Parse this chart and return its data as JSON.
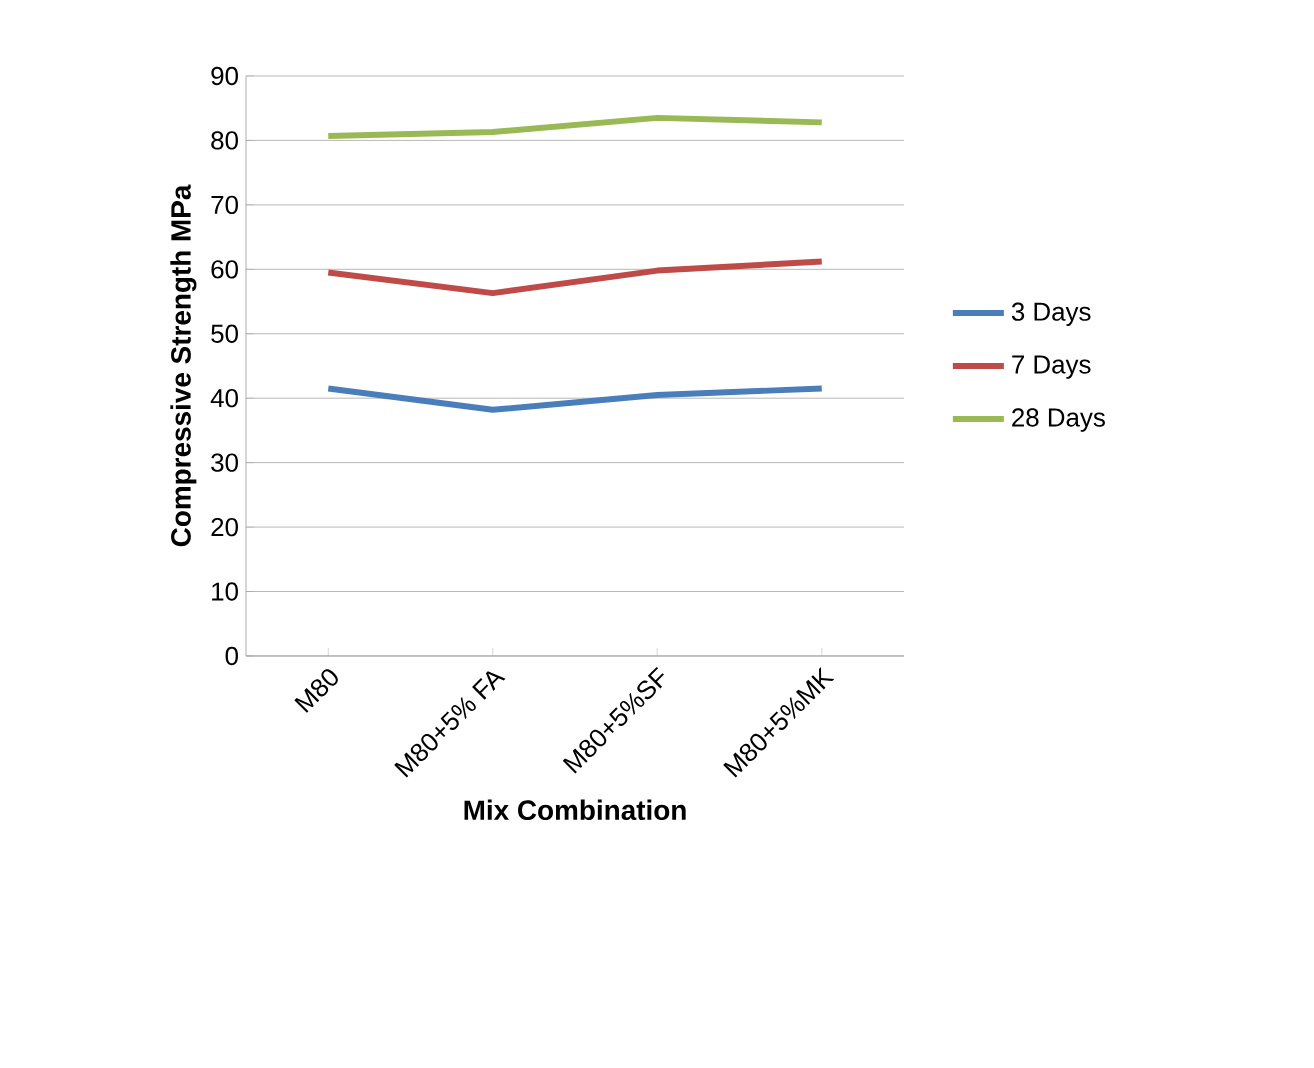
{
  "chart_data": {
    "type": "line",
    "xlabel": "Mix Combination",
    "ylabel": "Compressive Strength MPa",
    "categories": [
      "M80",
      "M80+5% FA",
      "M80+5%SF",
      "M80+5%MK"
    ],
    "series": [
      {
        "name": "3 Days",
        "color": "#4a7ebb",
        "values": [
          41.5,
          38.2,
          40.5,
          41.5
        ]
      },
      {
        "name": "7 Days",
        "color": "#be4b48",
        "values": [
          59.5,
          56.3,
          59.8,
          61.2
        ]
      },
      {
        "name": "28 Days",
        "color": "#98b954",
        "values": [
          80.7,
          81.3,
          83.5,
          82.8
        ]
      }
    ],
    "ylim": [
      0,
      90
    ],
    "yticks": [
      0,
      10,
      20,
      30,
      40,
      50,
      60,
      70,
      80,
      90
    ],
    "grid": "y",
    "legend": "right",
    "marker": "none",
    "line_style": "solid"
  }
}
